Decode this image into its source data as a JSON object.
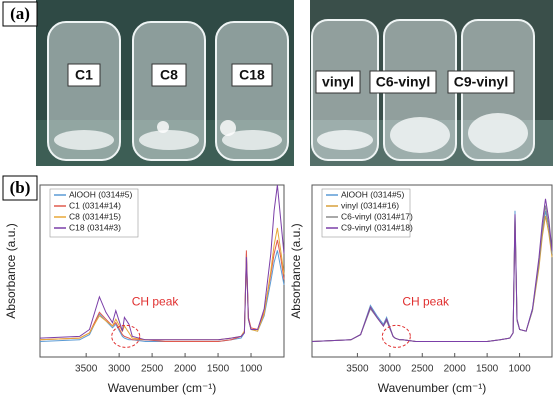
{
  "panel_labels": [
    "(a)",
    "(b)"
  ],
  "photos": [
    {
      "labels": [
        "C1",
        "C8",
        "C18"
      ]
    },
    {
      "labels": [
        "vinyl",
        "C6-vinyl",
        "C9-vinyl"
      ]
    }
  ],
  "chart_data": [
    {
      "type": "line",
      "x_label": "Wavenumber (cm⁻¹)",
      "y_label": "Absorbance (a.u.)",
      "annotation": "CH peak",
      "xlim": [
        4200,
        500
      ],
      "xticks": [
        3500,
        3000,
        2500,
        2000,
        1500,
        1000
      ],
      "ylim": [
        0,
        100
      ],
      "x": [
        4200,
        3600,
        3450,
        3300,
        3200,
        3100,
        3050,
        2950,
        2920,
        2850,
        2800,
        2600,
        2300,
        2000,
        1700,
        1500,
        1300,
        1150,
        1100,
        1070,
        1040,
        1000,
        900,
        800,
        700,
        650,
        600,
        550,
        500
      ],
      "series": [
        {
          "name": "AlOOH (0314#5)",
          "color": "#5b9bd5",
          "values": [
            9,
            10,
            13,
            25,
            21,
            17,
            19,
            12,
            11,
            10,
            10,
            9,
            9,
            9,
            9,
            9,
            10,
            11,
            14,
            60,
            22,
            16,
            15,
            24,
            44,
            55,
            62,
            52,
            42
          ]
        },
        {
          "name": "C1 (0314#14)",
          "color": "#e05a4e",
          "values": [
            10,
            11,
            14,
            26,
            22,
            18,
            20,
            13,
            12,
            11,
            10,
            10,
            9,
            9,
            9,
            9,
            10,
            12,
            15,
            62,
            23,
            17,
            16,
            26,
            48,
            60,
            68,
            58,
            45
          ]
        },
        {
          "name": "C8 (0314#15)",
          "color": "#e8a838",
          "values": [
            10,
            11,
            14,
            24,
            21,
            18,
            22,
            15,
            18,
            14,
            11,
            10,
            10,
            10,
            10,
            10,
            11,
            12,
            15,
            57,
            22,
            16,
            15,
            25,
            50,
            65,
            75,
            62,
            48
          ]
        },
        {
          "name": "C18 (0314#3)",
          "color": "#7b3fa8",
          "values": [
            11,
            12,
            16,
            35,
            26,
            20,
            27,
            15,
            23,
            19,
            12,
            10,
            10,
            10,
            10,
            10,
            11,
            12,
            14,
            58,
            22,
            16,
            16,
            28,
            60,
            85,
            100,
            80,
            60
          ]
        }
      ]
    },
    {
      "type": "line",
      "x_label": "Wavenumber (cm⁻¹)",
      "y_label": "Absorbance (a.u.)",
      "annotation": "CH peak",
      "xlim": [
        4200,
        500
      ],
      "xticks": [
        3500,
        3000,
        2500,
        2000,
        1500,
        1000
      ],
      "ylim": [
        0,
        100
      ],
      "x": [
        4200,
        3600,
        3450,
        3300,
        3200,
        3100,
        3050,
        2950,
        2920,
        2850,
        2800,
        2600,
        2300,
        2000,
        1700,
        1500,
        1300,
        1150,
        1100,
        1070,
        1040,
        1000,
        900,
        800,
        700,
        650,
        600,
        550,
        500
      ],
      "series": [
        {
          "name": "AlOOH (0314#5)",
          "color": "#5b9bd5",
          "values": [
            9,
            10,
            13,
            30,
            24,
            19,
            23,
            12,
            11,
            10,
            10,
            9,
            9,
            9,
            9,
            9,
            10,
            11,
            14,
            85,
            22,
            16,
            15,
            28,
            55,
            72,
            85,
            75,
            60
          ]
        },
        {
          "name": "vinyl (0314#16)",
          "color": "#d9a13a",
          "values": [
            9,
            10,
            13,
            29,
            23,
            18,
            22,
            12,
            11,
            10,
            10,
            9,
            9,
            9,
            9,
            9,
            10,
            11,
            14,
            82,
            22,
            16,
            15,
            27,
            52,
            70,
            82,
            72,
            58
          ]
        },
        {
          "name": "C6-vinyl (0314#17)",
          "color": "#8c8c8c",
          "values": [
            9,
            10,
            13,
            28,
            23,
            18,
            21,
            12,
            11,
            10,
            10,
            9,
            9,
            9,
            9,
            9,
            10,
            11,
            14,
            80,
            21,
            16,
            15,
            27,
            55,
            74,
            88,
            76,
            60
          ]
        },
        {
          "name": "C9-vinyl (0314#18)",
          "color": "#7b3fa8",
          "values": [
            9,
            10,
            13,
            29,
            23,
            18,
            22,
            12,
            11,
            10,
            10,
            9,
            9,
            9,
            9,
            9,
            10,
            11,
            14,
            83,
            22,
            16,
            15,
            28,
            58,
            78,
            92,
            80,
            62
          ]
        }
      ]
    }
  ]
}
